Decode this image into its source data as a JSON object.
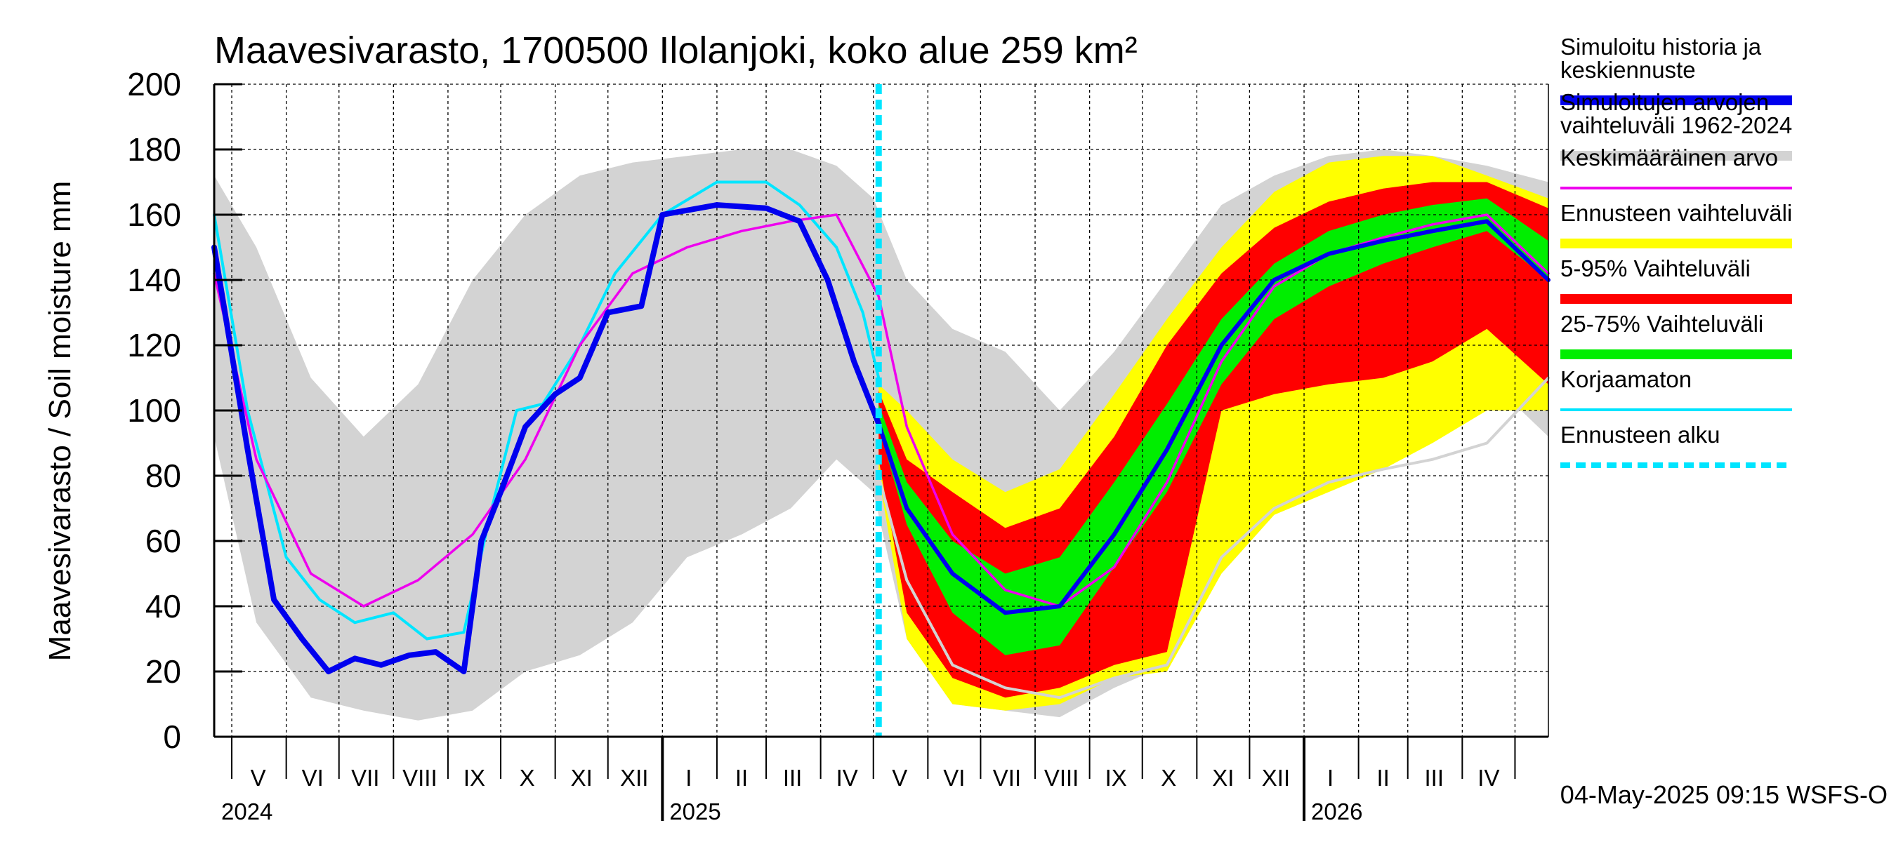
{
  "chart_data": {
    "type": "area",
    "title": "Maavesivarasto, 1700500 Ilolanjoki, koko alue 259 km²",
    "ylabel": "Maavesivarasto / Soil moisture   mm",
    "xlabel": "",
    "ylim": [
      0,
      200
    ],
    "yticks": [
      0,
      20,
      40,
      60,
      80,
      100,
      120,
      140,
      160,
      180,
      200
    ],
    "grid": true,
    "legend_position": "right",
    "x_range": [
      "2024-04-21",
      "2026-05-20"
    ],
    "forecast_start": "2025-05-04",
    "months": [
      {
        "label": "V",
        "date": "2024-05-16"
      },
      {
        "label": "VI",
        "date": "2024-06-16"
      },
      {
        "label": "VII",
        "date": "2024-07-16"
      },
      {
        "label": "VIII",
        "date": "2024-08-16"
      },
      {
        "label": "IX",
        "date": "2024-09-16"
      },
      {
        "label": "X",
        "date": "2024-10-16"
      },
      {
        "label": "XI",
        "date": "2024-11-16"
      },
      {
        "label": "XII",
        "date": "2024-12-16"
      },
      {
        "label": "I",
        "date": "2025-01-16"
      },
      {
        "label": "II",
        "date": "2025-02-15"
      },
      {
        "label": "III",
        "date": "2025-03-16"
      },
      {
        "label": "IV",
        "date": "2025-04-16"
      },
      {
        "label": "V",
        "date": "2025-05-16"
      },
      {
        "label": "VI",
        "date": "2025-06-16"
      },
      {
        "label": "VII",
        "date": "2025-07-16"
      },
      {
        "label": "VIII",
        "date": "2025-08-16"
      },
      {
        "label": "IX",
        "date": "2025-09-16"
      },
      {
        "label": "X",
        "date": "2025-10-16"
      },
      {
        "label": "XI",
        "date": "2025-11-16"
      },
      {
        "label": "XII",
        "date": "2025-12-16"
      },
      {
        "label": "I",
        "date": "2026-01-16"
      },
      {
        "label": "II",
        "date": "2026-02-15"
      },
      {
        "label": "III",
        "date": "2026-03-16"
      },
      {
        "label": "IV",
        "date": "2026-04-16"
      }
    ],
    "month_boundaries": [
      "2024-05-01",
      "2024-06-01",
      "2024-07-01",
      "2024-08-01",
      "2024-09-01",
      "2024-10-01",
      "2024-11-01",
      "2024-12-01",
      "2025-01-01",
      "2025-02-01",
      "2025-03-01",
      "2025-04-01",
      "2025-05-01",
      "2025-06-01",
      "2025-07-01",
      "2025-08-01",
      "2025-09-01",
      "2025-10-01",
      "2025-11-01",
      "2025-12-01",
      "2026-01-01",
      "2026-02-01",
      "2026-03-01",
      "2026-04-01",
      "2026-05-01"
    ],
    "years": [
      {
        "label": "2024",
        "date": "2024-04-21"
      },
      {
        "label": "2025",
        "date": "2025-01-01"
      },
      {
        "label": "2026",
        "date": "2026-01-01"
      }
    ],
    "year_boundaries": [
      "2025-01-01",
      "2026-01-01"
    ],
    "series": [
      {
        "name": "Simuloitujen arvojen vaihteluväli 1962-2024",
        "kind": "band",
        "color": "#d3d3d3",
        "x": [
          "2024-04-21",
          "2024-05-15",
          "2024-06-15",
          "2024-07-15",
          "2024-08-15",
          "2024-09-15",
          "2024-10-15",
          "2024-11-15",
          "2024-12-15",
          "2025-01-15",
          "2025-02-15",
          "2025-03-15",
          "2025-04-10",
          "2025-05-01",
          "2025-05-20",
          "2025-06-15",
          "2025-07-15",
          "2025-08-15",
          "2025-09-15",
          "2025-10-15",
          "2025-11-15",
          "2025-12-15",
          "2026-01-15",
          "2026-02-15",
          "2026-03-15",
          "2026-04-15",
          "2026-05-20"
        ],
        "upper": [
          172,
          150,
          110,
          92,
          108,
          140,
          160,
          172,
          176,
          178,
          180,
          180,
          175,
          165,
          140,
          125,
          118,
          100,
          118,
          140,
          163,
          172,
          178,
          180,
          178,
          175,
          170
        ],
        "lower": [
          92,
          35,
          12,
          8,
          5,
          8,
          20,
          25,
          35,
          55,
          62,
          70,
          85,
          75,
          30,
          10,
          8,
          6,
          15,
          22,
          50,
          68,
          78,
          85,
          95,
          110,
          92
        ]
      },
      {
        "name": "Ennusteen vaihteluväli",
        "kind": "band",
        "color": "#ffff00",
        "x": [
          "2025-05-04",
          "2025-05-20",
          "2025-06-15",
          "2025-07-15",
          "2025-08-15",
          "2025-09-15",
          "2025-10-15",
          "2025-11-15",
          "2025-12-15",
          "2026-01-15",
          "2026-02-15",
          "2026-03-15",
          "2026-04-15",
          "2026-05-20"
        ],
        "upper": [
          108,
          100,
          85,
          75,
          82,
          105,
          128,
          150,
          167,
          176,
          178,
          178,
          172,
          165
        ],
        "lower": [
          80,
          30,
          10,
          8,
          10,
          18,
          20,
          50,
          68,
          75,
          82,
          90,
          100,
          100
        ]
      },
      {
        "name": "5-95% Vaihteluväli",
        "kind": "band",
        "color": "#ff0000",
        "x": [
          "2025-05-04",
          "2025-05-20",
          "2025-06-15",
          "2025-07-15",
          "2025-08-15",
          "2025-09-15",
          "2025-10-15",
          "2025-11-15",
          "2025-12-15",
          "2026-01-15",
          "2026-02-15",
          "2026-03-15",
          "2026-04-15",
          "2026-05-20"
        ],
        "upper": [
          106,
          85,
          75,
          64,
          70,
          92,
          120,
          142,
          156,
          164,
          168,
          170,
          170,
          162
        ],
        "lower": [
          85,
          38,
          18,
          12,
          15,
          22,
          26,
          100,
          105,
          108,
          110,
          115,
          125,
          108
        ]
      },
      {
        "name": "25-75% Vaihteluväli",
        "kind": "band",
        "color": "#00ee00",
        "x": [
          "2025-05-04",
          "2025-05-20",
          "2025-06-15",
          "2025-07-15",
          "2025-08-15",
          "2025-09-15",
          "2025-10-15",
          "2025-11-15",
          "2025-12-15",
          "2026-01-15",
          "2026-02-15",
          "2026-03-15",
          "2026-04-15",
          "2026-05-20"
        ],
        "upper": [
          102,
          78,
          60,
          50,
          55,
          78,
          102,
          128,
          145,
          155,
          160,
          163,
          165,
          152
        ],
        "lower": [
          95,
          65,
          38,
          25,
          28,
          52,
          75,
          108,
          128,
          138,
          145,
          150,
          155,
          140
        ]
      },
      {
        "name": "Korjaamaton",
        "kind": "line",
        "color": "#00e5ff",
        "width": 4,
        "x": [
          "2024-04-21",
          "2024-05-10",
          "2024-06-01",
          "2024-06-20",
          "2024-07-10",
          "2024-08-01",
          "2024-08-20",
          "2024-09-10",
          "2024-09-25",
          "2024-10-10",
          "2024-10-25",
          "2024-11-15",
          "2024-12-05",
          "2025-01-01",
          "2025-02-01",
          "2025-03-01",
          "2025-03-20",
          "2025-04-10",
          "2025-04-25",
          "2025-05-04"
        ],
        "y": [
          160,
          100,
          55,
          42,
          35,
          38,
          30,
          32,
          68,
          100,
          102,
          120,
          142,
          160,
          170,
          170,
          163,
          150,
          130,
          110
        ]
      },
      {
        "name": "Keskimääräinen arvo",
        "kind": "line",
        "color": "#ee00ee",
        "width": 3.5,
        "x": [
          "2024-04-21",
          "2024-05-15",
          "2024-06-15",
          "2024-07-15",
          "2024-08-15",
          "2024-09-15",
          "2024-10-15",
          "2024-11-15",
          "2024-12-15",
          "2025-01-15",
          "2025-02-15",
          "2025-03-15",
          "2025-04-10",
          "2025-05-04",
          "2025-05-20",
          "2025-06-15",
          "2025-07-15",
          "2025-08-15",
          "2025-09-15",
          "2025-10-15",
          "2025-11-15",
          "2025-12-15",
          "2026-01-15",
          "2026-02-15",
          "2026-03-15",
          "2026-04-15",
          "2026-05-20"
        ],
        "y": [
          142,
          85,
          50,
          40,
          48,
          62,
          85,
          120,
          142,
          150,
          155,
          158,
          160,
          135,
          95,
          62,
          45,
          40,
          52,
          78,
          115,
          138,
          148,
          153,
          157,
          160,
          142
        ]
      },
      {
        "name": "Simuloitu historia ja keskiennuste",
        "kind": "line",
        "color": "#0000ee",
        "width": 8,
        "x": [
          "2024-04-21",
          "2024-05-10",
          "2024-05-25",
          "2024-06-10",
          "2024-06-25",
          "2024-07-10",
          "2024-07-25",
          "2024-08-10",
          "2024-08-25",
          "2024-09-10",
          "2024-09-20",
          "2024-10-01",
          "2024-10-15",
          "2024-11-01",
          "2024-11-15",
          "2024-12-01",
          "2024-12-20",
          "2025-01-01",
          "2025-02-01",
          "2025-03-01",
          "2025-03-20",
          "2025-04-05",
          "2025-04-20",
          "2025-05-04"
        ],
        "y": [
          150,
          88,
          42,
          30,
          20,
          24,
          22,
          25,
          26,
          20,
          60,
          75,
          95,
          105,
          110,
          130,
          132,
          160,
          163,
          162,
          158,
          140,
          115,
          96
        ]
      },
      {
        "name": "Simuloitu historia ja keskiennuste",
        "kind": "line",
        "color": "#0000ee",
        "width": 6,
        "x": [
          "2025-05-04",
          "2025-05-20",
          "2025-06-15",
          "2025-07-15",
          "2025-08-15",
          "2025-09-15",
          "2025-10-15",
          "2025-11-15",
          "2025-12-15",
          "2026-01-15",
          "2026-02-15",
          "2026-03-15",
          "2026-04-15",
          "2026-05-20"
        ],
        "y": [
          96,
          70,
          50,
          38,
          40,
          62,
          88,
          120,
          140,
          148,
          152,
          155,
          158,
          140
        ]
      },
      {
        "name": "",
        "kind": "line",
        "color": "#d3d3d3",
        "width": 4,
        "x": [
          "2025-05-04",
          "2025-05-20",
          "2025-06-15",
          "2025-07-15",
          "2025-08-15",
          "2025-09-15",
          "2025-10-15",
          "2025-11-15",
          "2025-12-15",
          "2026-01-15",
          "2026-02-15",
          "2026-03-15",
          "2026-04-15",
          "2026-05-20"
        ],
        "y": [
          80,
          48,
          22,
          15,
          12,
          18,
          22,
          55,
          70,
          78,
          82,
          85,
          90,
          110
        ]
      }
    ]
  },
  "legend": [
    {
      "label_lines": [
        "Simuloitu historia ja",
        "keskiennuste"
      ],
      "color": "#0000ee",
      "style": "thick"
    },
    {
      "label_lines": [
        "Simuloitujen arvojen",
        "vaihteluväli 1962-2024"
      ],
      "color": "#d3d3d3",
      "style": "thick"
    },
    {
      "label_lines": [
        "Keskimääräinen arvo"
      ],
      "color": "#ee00ee",
      "style": "thin"
    },
    {
      "label_lines": [
        "Ennusteen vaihteluväli"
      ],
      "color": "#ffff00",
      "style": "thick"
    },
    {
      "label_lines": [
        "5-95% Vaihteluväli"
      ],
      "color": "#ff0000",
      "style": "thick"
    },
    {
      "label_lines": [
        "25-75% Vaihteluväli"
      ],
      "color": "#00ee00",
      "style": "thick"
    },
    {
      "label_lines": [
        "Korjaamaton"
      ],
      "color": "#00e5ff",
      "style": "thin"
    },
    {
      "label_lines": [
        "Ennusteen alku"
      ],
      "color": "#00e5ff",
      "style": "dashed"
    }
  ],
  "footer": "04-May-2025 09:15 WSFS-O"
}
